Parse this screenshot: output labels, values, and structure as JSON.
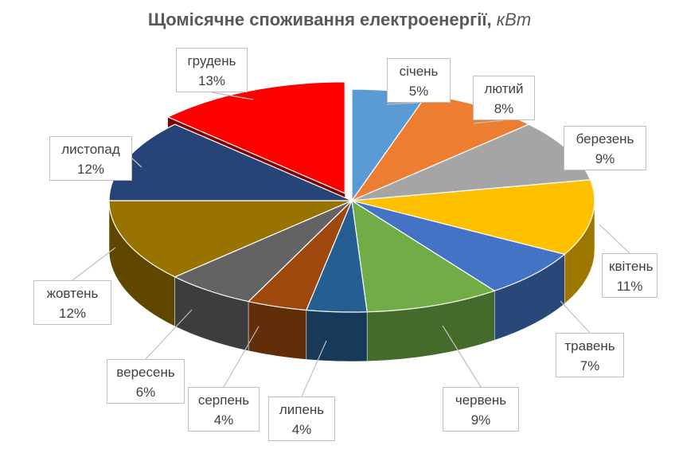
{
  "chart_data": {
    "type": "pie",
    "title": "Щомісячне споживання електроенергії,",
    "title_unit": "кВт",
    "categories": [
      "січень",
      "лютий",
      "березень",
      "квітень",
      "травень",
      "червень",
      "липень",
      "серпень",
      "вересень",
      "жовтень",
      "листопад",
      "грудень"
    ],
    "values": [
      5,
      8,
      9,
      11,
      7,
      9,
      4,
      4,
      6,
      12,
      12,
      13
    ],
    "value_labels": [
      "5%",
      "8%",
      "9%",
      "11%",
      "7%",
      "9%",
      "4%",
      "4%",
      "6%",
      "12%",
      "12%",
      "13%"
    ],
    "colors": [
      "#5B9BD5",
      "#ED7D31",
      "#A5A5A5",
      "#FFC000",
      "#4472C4",
      "#70AD47",
      "#255E91",
      "#9E480E",
      "#636363",
      "#997300",
      "#264478",
      "#FF0000"
    ],
    "exploded": "грудень",
    "style": "3d-exploded",
    "legend": "none"
  }
}
